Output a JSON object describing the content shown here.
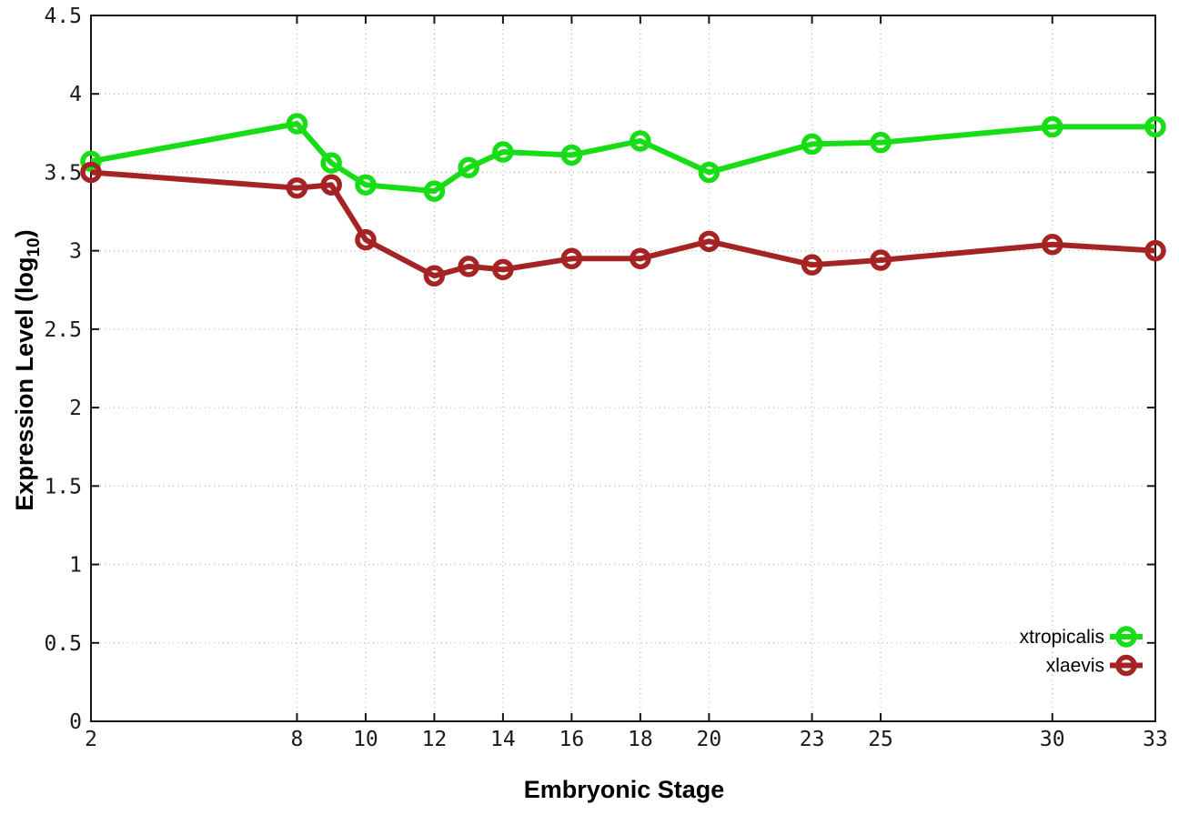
{
  "chart_data": {
    "type": "line",
    "title": "",
    "xlabel": "Embryonic Stage",
    "ylabel": "Expression Level (log10)",
    "ylabel_parts": {
      "prefix": "Expression Level (log",
      "subscript": "10",
      "suffix": ")"
    },
    "x": [
      2,
      8,
      9,
      10,
      12,
      13,
      14,
      16,
      18,
      20,
      23,
      25,
      30,
      33
    ],
    "xtick_labels": [
      "2",
      "8",
      "10",
      "12",
      "14",
      "16",
      "18",
      "20",
      "23",
      "25",
      "30",
      "33"
    ],
    "xtick_values": [
      2,
      8,
      10,
      12,
      14,
      16,
      18,
      20,
      23,
      25,
      30,
      33
    ],
    "ytick_labels": [
      "0",
      "0.5",
      "1",
      "1.5",
      "2",
      "2.5",
      "3",
      "3.5",
      "4",
      "4.5"
    ],
    "ytick_values": [
      0,
      0.5,
      1,
      1.5,
      2,
      2.5,
      3,
      3.5,
      4,
      4.5
    ],
    "xlim": [
      2,
      33
    ],
    "ylim": [
      0,
      4.5
    ],
    "grid": true,
    "grid_style": "dotted",
    "legend_position": "bottom-right",
    "series": [
      {
        "name": "xtropicalis",
        "color": "#17dd17",
        "marker": "open-circle",
        "values": [
          3.57,
          3.81,
          3.56,
          3.42,
          3.38,
          3.53,
          3.63,
          3.61,
          3.7,
          3.5,
          3.68,
          3.69,
          3.79,
          3.79
        ]
      },
      {
        "name": "xlaevis",
        "color": "#a52323",
        "marker": "open-circle",
        "values": [
          3.5,
          3.4,
          3.42,
          3.07,
          2.84,
          2.9,
          2.88,
          2.95,
          2.95,
          3.06,
          2.91,
          2.94,
          3.04,
          3.0
        ]
      }
    ],
    "colors": {
      "axis": "#141414",
      "grid": "#bcbcbc",
      "tick_text": "#1a1a1a",
      "background": "#ffffff"
    }
  }
}
